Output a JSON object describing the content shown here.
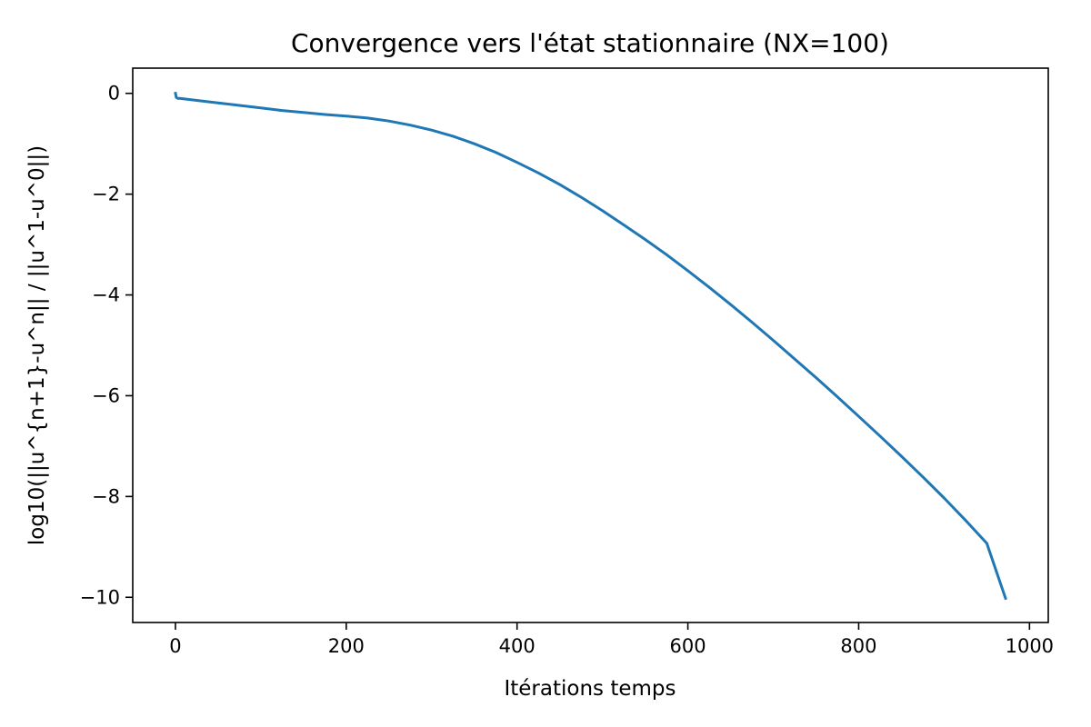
{
  "chart_data": {
    "type": "line",
    "title": "Convergence vers l'état stationnaire (NX=100)",
    "xlabel": "Itérations temps",
    "ylabel": "log10(||u^{n+1}-u^n|| / ||u^1-u^0||)",
    "xlim": [
      -50,
      1022
    ],
    "ylim": [
      -10.5,
      0.5
    ],
    "xticks": [
      0,
      200,
      400,
      600,
      800,
      1000
    ],
    "xtick_labels": [
      "0",
      "200",
      "400",
      "600",
      "800",
      "1000"
    ],
    "yticks": [
      0,
      -2,
      -4,
      -6,
      -8,
      -10
    ],
    "ytick_labels": [
      "0",
      "−2",
      "−4",
      "−6",
      "−8",
      "−10"
    ],
    "grid": false,
    "series": [
      {
        "color": "#1f77b4",
        "x": [
          0,
          1,
          3,
          5,
          25,
          50,
          75,
          100,
          125,
          150,
          175,
          200,
          225,
          250,
          275,
          300,
          325,
          350,
          375,
          400,
          425,
          450,
          475,
          500,
          525,
          550,
          575,
          600,
          625,
          650,
          675,
          700,
          725,
          750,
          775,
          800,
          825,
          850,
          875,
          900,
          925,
          950,
          972
        ],
        "y": [
          0,
          -0.08,
          -0.1,
          -0.1,
          -0.14,
          -0.19,
          -0.24,
          -0.29,
          -0.34,
          -0.38,
          -0.42,
          -0.45,
          -0.49,
          -0.55,
          -0.63,
          -0.73,
          -0.85,
          -1.0,
          -1.17,
          -1.37,
          -1.58,
          -1.81,
          -2.06,
          -2.33,
          -2.61,
          -2.9,
          -3.2,
          -3.52,
          -3.85,
          -4.19,
          -4.54,
          -4.9,
          -5.27,
          -5.64,
          -6.02,
          -6.41,
          -6.8,
          -7.2,
          -7.61,
          -8.03,
          -8.47,
          -8.93,
          -10.02
        ]
      }
    ]
  }
}
